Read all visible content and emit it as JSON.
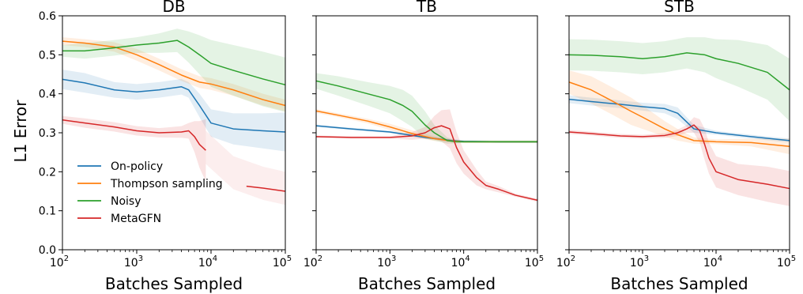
{
  "figure": {
    "ylabel": "L1 Error",
    "legend_placement": "lower-left (first panel)",
    "legend": [
      {
        "name": "On-policy",
        "color": "#1f77b4"
      },
      {
        "name": "Thompson sampling",
        "color": "#ff7f0e"
      },
      {
        "name": "Noisy",
        "color": "#2ca02c"
      },
      {
        "name": "MetaGFN",
        "color": "#d62728"
      }
    ],
    "yticks": [
      "0.0",
      "0.1",
      "0.2",
      "0.3",
      "0.4",
      "0.5",
      "0.6"
    ],
    "xticks": [
      {
        "base": "10",
        "exp": "2"
      },
      {
        "base": "10",
        "exp": "3"
      },
      {
        "base": "10",
        "exp": "4"
      },
      {
        "base": "10",
        "exp": "5"
      }
    ]
  },
  "chart_data": [
    {
      "type": "line",
      "title": "DB",
      "xlabel": "Batches Sampled",
      "ylabel": "L1 Error",
      "xscale": "log",
      "xlim": [
        100,
        100000
      ],
      "ylim": [
        0.0,
        0.6
      ],
      "grid": false,
      "series": [
        {
          "name": "On-policy",
          "color": "#1f77b4",
          "x": [
            100,
            200,
            500,
            1000,
            2000,
            4000,
            5000,
            7000,
            10000,
            20000,
            50000,
            100000
          ],
          "y": [
            0.437,
            0.428,
            0.41,
            0.405,
            0.41,
            0.418,
            0.41,
            0.37,
            0.325,
            0.31,
            0.305,
            0.302
          ],
          "band": [
            0.025,
            0.025,
            0.02,
            0.02,
            0.02,
            0.02,
            0.02,
            0.03,
            0.035,
            0.04,
            0.045,
            0.05
          ]
        },
        {
          "name": "Thompson sampling",
          "color": "#ff7f0e",
          "x": [
            100,
            200,
            500,
            1000,
            2000,
            4000,
            7000,
            10000,
            20000,
            50000,
            100000
          ],
          "y": [
            0.535,
            0.53,
            0.52,
            0.5,
            0.475,
            0.448,
            0.43,
            0.425,
            0.41,
            0.385,
            0.37
          ],
          "band": [
            0.01,
            0.01,
            0.012,
            0.015,
            0.015,
            0.015,
            0.015,
            0.015,
            0.015,
            0.015,
            0.015
          ]
        },
        {
          "name": "Noisy",
          "color": "#2ca02c",
          "x": [
            100,
            200,
            500,
            1000,
            2000,
            3500,
            5000,
            7000,
            10000,
            20000,
            50000,
            100000
          ],
          "y": [
            0.51,
            0.51,
            0.518,
            0.525,
            0.53,
            0.537,
            0.52,
            0.5,
            0.478,
            0.46,
            0.438,
            0.423
          ],
          "band": [
            0.015,
            0.02,
            0.02,
            0.02,
            0.025,
            0.03,
            0.04,
            0.05,
            0.06,
            0.065,
            0.07,
            0.07
          ]
        },
        {
          "name": "MetaGFN",
          "color": "#d62728",
          "x": [
            100,
            200,
            500,
            1000,
            2000,
            4000,
            5000,
            6000,
            7000,
            8500
          ],
          "y": [
            0.333,
            0.325,
            0.315,
            0.305,
            0.3,
            0.302,
            0.305,
            0.29,
            0.27,
            0.255
          ],
          "band": [
            0.01,
            0.012,
            0.012,
            0.012,
            0.012,
            0.015,
            0.02,
            0.04,
            0.06,
            0.08
          ],
          "faded_x": [
            8500,
            20000,
            50000,
            100000
          ],
          "faded_y": [
            0.255,
            0.19,
            0.163,
            0.15
          ],
          "line2_x": [
            30000,
            50000,
            100000
          ],
          "line2_y": [
            0.163,
            0.158,
            0.15
          ]
        }
      ]
    },
    {
      "type": "line",
      "title": "TB",
      "xlabel": "Batches Sampled",
      "xscale": "log",
      "xlim": [
        100,
        100000
      ],
      "ylim": [
        0.0,
        0.6
      ],
      "grid": false,
      "series": [
        {
          "name": "On-policy",
          "color": "#1f77b4",
          "x": [
            100,
            300,
            1000,
            3000,
            7000,
            10000,
            30000,
            100000
          ],
          "y": [
            0.318,
            0.31,
            0.302,
            0.288,
            0.28,
            0.278,
            0.277,
            0.277
          ],
          "band": [
            0.003,
            0.003,
            0.003,
            0.003,
            0.003,
            0.003,
            0.003,
            0.003
          ]
        },
        {
          "name": "Thompson sampling",
          "color": "#ff7f0e",
          "x": [
            100,
            200,
            500,
            1000,
            2000,
            4000,
            7000,
            10000,
            30000,
            100000
          ],
          "y": [
            0.356,
            0.345,
            0.33,
            0.315,
            0.298,
            0.285,
            0.279,
            0.277,
            0.277,
            0.277
          ],
          "band": [
            0.005,
            0.005,
            0.006,
            0.008,
            0.008,
            0.006,
            0.004,
            0.003,
            0.003,
            0.003
          ]
        },
        {
          "name": "Noisy",
          "color": "#2ca02c",
          "x": [
            100,
            200,
            500,
            1000,
            1500,
            2000,
            3000,
            4000,
            6000,
            8000,
            10000,
            30000,
            100000
          ],
          "y": [
            0.433,
            0.42,
            0.4,
            0.385,
            0.37,
            0.355,
            0.32,
            0.3,
            0.28,
            0.277,
            0.277,
            0.277,
            0.277
          ],
          "band": [
            0.02,
            0.025,
            0.03,
            0.035,
            0.04,
            0.04,
            0.035,
            0.02,
            0.008,
            0.004,
            0.003,
            0.003,
            0.003
          ]
        },
        {
          "name": "MetaGFN",
          "color": "#d62728",
          "x": [
            100,
            300,
            1000,
            2000,
            3000,
            4000,
            5000,
            6500,
            8000,
            10000,
            15000,
            20000,
            30000,
            50000,
            100000
          ],
          "y": [
            0.29,
            0.288,
            0.288,
            0.292,
            0.3,
            0.313,
            0.318,
            0.31,
            0.262,
            0.225,
            0.185,
            0.165,
            0.155,
            0.14,
            0.127
          ],
          "band": [
            0.003,
            0.003,
            0.003,
            0.01,
            0.015,
            0.03,
            0.04,
            0.05,
            0.04,
            0.03,
            0.02,
            0.01,
            0.008,
            0.004,
            0.004
          ]
        }
      ]
    },
    {
      "type": "line",
      "title": "STB",
      "xlabel": "Batches Sampled",
      "xscale": "log",
      "xlim": [
        100,
        100000
      ],
      "ylim": [
        0.0,
        0.6
      ],
      "grid": false,
      "series": [
        {
          "name": "On-policy",
          "color": "#1f77b4",
          "x": [
            100,
            200,
            500,
            1000,
            2000,
            3000,
            5000,
            10000,
            30000,
            100000
          ],
          "y": [
            0.386,
            0.38,
            0.373,
            0.367,
            0.362,
            0.35,
            0.31,
            0.3,
            0.29,
            0.28
          ],
          "band": [
            0.01,
            0.01,
            0.01,
            0.01,
            0.012,
            0.015,
            0.01,
            0.005,
            0.005,
            0.005
          ]
        },
        {
          "name": "Thompson sampling",
          "color": "#ff7f0e",
          "x": [
            100,
            200,
            400,
            700,
            1000,
            2000,
            3000,
            5000,
            10000,
            30000,
            100000
          ],
          "y": [
            0.43,
            0.41,
            0.38,
            0.355,
            0.34,
            0.31,
            0.295,
            0.28,
            0.277,
            0.275,
            0.265
          ],
          "band": [
            0.03,
            0.035,
            0.035,
            0.035,
            0.03,
            0.02,
            0.015,
            0.008,
            0.006,
            0.01,
            0.02
          ]
        },
        {
          "name": "Noisy",
          "color": "#2ca02c",
          "x": [
            100,
            200,
            500,
            1000,
            2000,
            4000,
            7000,
            10000,
            20000,
            50000,
            100000
          ],
          "y": [
            0.5,
            0.499,
            0.495,
            0.49,
            0.495,
            0.505,
            0.5,
            0.49,
            0.478,
            0.455,
            0.41
          ],
          "band": [
            0.04,
            0.04,
            0.04,
            0.04,
            0.04,
            0.04,
            0.045,
            0.05,
            0.06,
            0.07,
            0.08
          ]
        },
        {
          "name": "MetaGFN",
          "color": "#d62728",
          "x": [
            100,
            200,
            500,
            1000,
            2000,
            3000,
            4000,
            5000,
            6000,
            7000,
            8000,
            10000,
            20000,
            50000,
            100000
          ],
          "y": [
            0.302,
            0.298,
            0.292,
            0.29,
            0.293,
            0.3,
            0.31,
            0.32,
            0.305,
            0.27,
            0.235,
            0.2,
            0.18,
            0.168,
            0.157
          ],
          "band": [
            0.005,
            0.005,
            0.005,
            0.005,
            0.006,
            0.008,
            0.01,
            0.02,
            0.03,
            0.04,
            0.04,
            0.04,
            0.04,
            0.045,
            0.045
          ]
        }
      ]
    }
  ]
}
